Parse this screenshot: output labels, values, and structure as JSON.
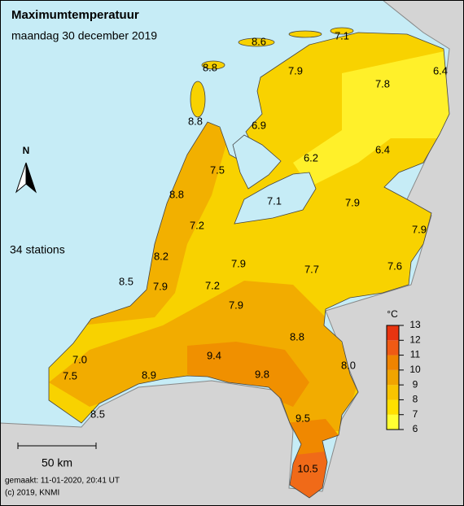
{
  "header": {
    "title": "Maximumtemperatuur",
    "subtitle": "maandag 30 december 2019"
  },
  "stations": [
    "8.6",
    "7.1",
    "8.8",
    "7.9",
    "6.4",
    "7.8",
    "8.8",
    "6.9",
    "6.2",
    "6.4",
    "7.5",
    "8.8",
    "7.1",
    "7.9",
    "7.2",
    "7.9",
    "8.2",
    "7.9",
    "7.7",
    "7.6",
    "8.5",
    "7.9",
    "7.2",
    "7.9",
    "8.8",
    "9.4",
    "7.0",
    "8.0",
    "8.9",
    "9.8",
    "7.5",
    "9.5",
    "8.5",
    "10.5"
  ],
  "station_count": "34 stations",
  "north": "N",
  "scale_bar": "50 km",
  "legend": {
    "unit": "°C",
    "ticks": [
      6,
      7,
      8,
      9,
      10,
      11,
      12,
      13
    ],
    "colors": [
      "#ffff33",
      "#ffe000",
      "#f8c400",
      "#f0a400",
      "#f08400",
      "#f05a14",
      "#e83410"
    ]
  },
  "footer": {
    "made": "gemaakt: 11-01-2020, 20:41 UT",
    "copyright": "(c) 2019, KNMI"
  }
}
